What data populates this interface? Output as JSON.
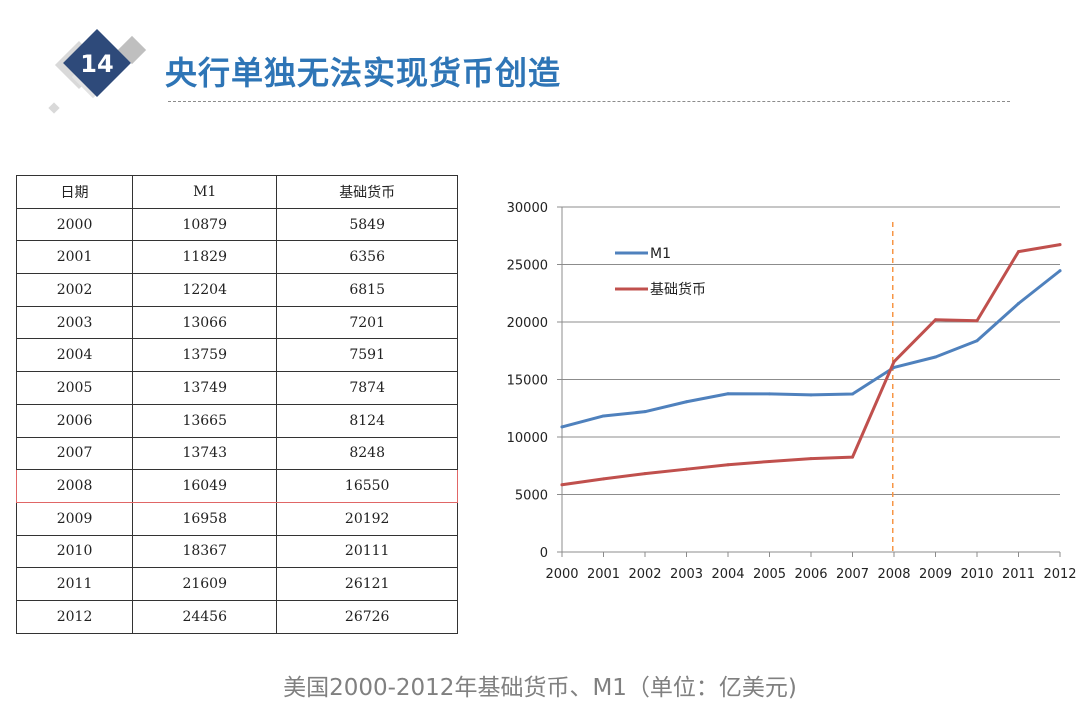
{
  "slide": {
    "number": "14",
    "title": "央行单独无法实现货币创造",
    "caption": "美国2000-2012年基础货币、M1（单位：亿美元)"
  },
  "table": {
    "headers": [
      "日期",
      "M1",
      "基础货币"
    ],
    "rows": [
      [
        "2000",
        "10879",
        "5849"
      ],
      [
        "2001",
        "11829",
        "6356"
      ],
      [
        "2002",
        "12204",
        "6815"
      ],
      [
        "2003",
        "13066",
        "7201"
      ],
      [
        "2004",
        "13759",
        "7591"
      ],
      [
        "2005",
        "13749",
        "7874"
      ],
      [
        "2006",
        "13665",
        "8124"
      ],
      [
        "2007",
        "13743",
        "8248"
      ],
      [
        "2008",
        "16049",
        "16550"
      ],
      [
        "2009",
        "16958",
        "20192"
      ],
      [
        "2010",
        "18367",
        "20111"
      ],
      [
        "2011",
        "21609",
        "26121"
      ],
      [
        "2012",
        "24456",
        "26726"
      ]
    ],
    "highlight_row_year": "2008"
  },
  "chart_data": {
    "type": "line",
    "x": [
      "2000",
      "2001",
      "2002",
      "2003",
      "2004",
      "2005",
      "2006",
      "2007",
      "2008",
      "2009",
      "2010",
      "2011",
      "2012"
    ],
    "series": [
      {
        "name": "M1",
        "color": "#4f81bd",
        "values": [
          10879,
          11829,
          12204,
          13066,
          13759,
          13749,
          13665,
          13743,
          16049,
          16958,
          18367,
          21609,
          24456
        ]
      },
      {
        "name": "基础货币",
        "color": "#c0504d",
        "values": [
          5849,
          6356,
          6815,
          7201,
          7591,
          7874,
          8124,
          8248,
          16550,
          20192,
          20111,
          26121,
          26726
        ]
      }
    ],
    "ylim": [
      0,
      30000
    ],
    "yticks": [
      0,
      5000,
      10000,
      15000,
      20000,
      25000,
      30000
    ],
    "grid": true,
    "legend": "top-left",
    "annotation": {
      "type": "vertical-dashed-line",
      "x": "2008",
      "color": "#f79646"
    }
  },
  "colors": {
    "title": "#2e75b6",
    "badge": "#2e4a7a",
    "caption": "#808080"
  }
}
